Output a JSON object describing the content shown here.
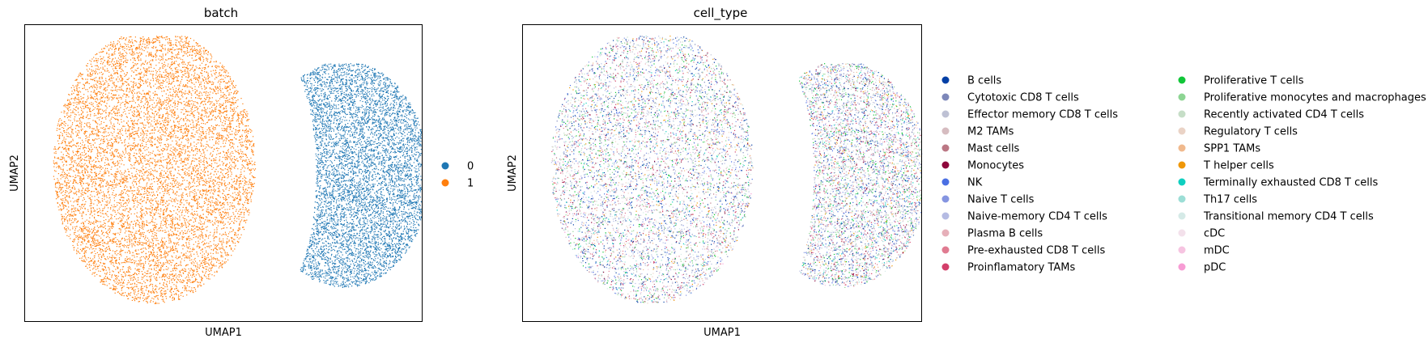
{
  "chart_data": [
    {
      "type": "scatter",
      "title": "batch",
      "xlabel": "UMAP1",
      "ylabel": "UMAP2",
      "legend_position": "right",
      "grid": false,
      "ticks": false,
      "legend": [
        {
          "label": "0",
          "color": "#1f77b4"
        },
        {
          "label": "1",
          "color": "#ff7f0e"
        }
      ],
      "clusters": [
        {
          "series": "1",
          "color": "#ff7f0e",
          "shape": "left-half-disc"
        },
        {
          "series": "0",
          "color": "#1f77b4",
          "shape": "crescent"
        }
      ]
    },
    {
      "type": "scatter",
      "title": "cell_type",
      "xlabel": "UMAP1",
      "ylabel": "UMAP2",
      "legend_position": "right",
      "grid": false,
      "ticks": false,
      "legend": [
        {
          "label": "B cells",
          "color": "#023fa5"
        },
        {
          "label": "Cytotoxic CD8 T cells",
          "color": "#7d87b9"
        },
        {
          "label": "Effector memory CD8 T cells",
          "color": "#bec1d4"
        },
        {
          "label": "M2 TAMs",
          "color": "#d6bcc0"
        },
        {
          "label": "Mast cells",
          "color": "#bb7784"
        },
        {
          "label": "Monocytes",
          "color": "#8e063b"
        },
        {
          "label": "NK",
          "color": "#4a6fe3"
        },
        {
          "label": "Naive T cells",
          "color": "#8595e1"
        },
        {
          "label": "Naive-memory CD4 T cells",
          "color": "#b5bbe3"
        },
        {
          "label": "Plasma B cells",
          "color": "#e6afb9"
        },
        {
          "label": "Pre-exhausted CD8 T cells",
          "color": "#e07b91"
        },
        {
          "label": "Proinflamatory TAMs",
          "color": "#d33f6a"
        },
        {
          "label": "Proliferative T cells",
          "color": "#11c638"
        },
        {
          "label": "Proliferative monocytes and macrophages",
          "color": "#8dd593"
        },
        {
          "label": "Recently activated CD4 T cells",
          "color": "#c6dec7"
        },
        {
          "label": "Regulatory T cells",
          "color": "#ead3c6"
        },
        {
          "label": "SPP1 TAMs",
          "color": "#f0b98d"
        },
        {
          "label": "T helper cells",
          "color": "#ef9708"
        },
        {
          "label": "Terminally exhausted CD8 T cells",
          "color": "#0fcfc0"
        },
        {
          "label": "Th17 cells",
          "color": "#9cded6"
        },
        {
          "label": "Transitional memory CD4 T cells",
          "color": "#d5eae7"
        },
        {
          "label": "cDC",
          "color": "#f3e1eb"
        },
        {
          "label": "mDC",
          "color": "#f6c4e1"
        },
        {
          "label": "pDC",
          "color": "#f79cd4"
        }
      ]
    }
  ]
}
